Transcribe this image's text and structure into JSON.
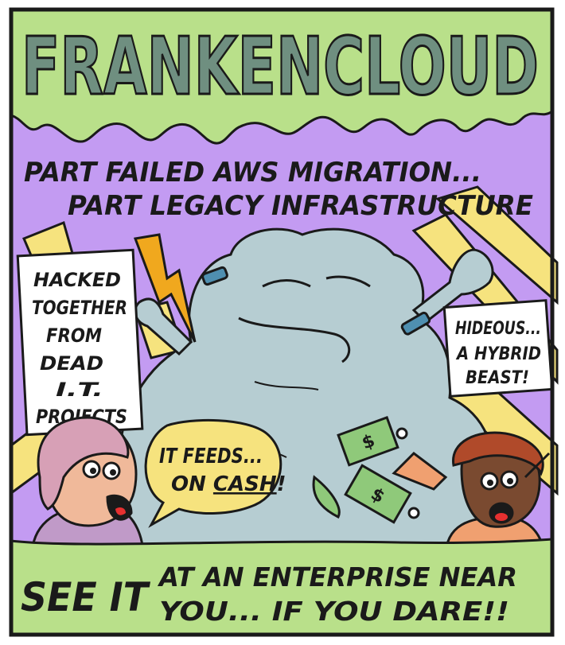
{
  "title": "FRANKENCLOUD",
  "caption": {
    "line1": "PART FAILED AWS MIGRATION...",
    "line2": "PART LEGACY INFRASTRUCTURE"
  },
  "left_sign": [
    "HACKED",
    "TOGETHER",
    "FROM",
    "DEAD",
    "I.T.",
    "PROJECTS"
  ],
  "right_sign": [
    "HIDEOUS...",
    "A HYBRID",
    "BEAST!"
  ],
  "speech": {
    "line1": "IT FEEDS...",
    "line2_prefix": "ON ",
    "line2_emph": "CASH",
    "line2_suffix": "!"
  },
  "footer": {
    "left": "SEE IT",
    "right_line1": "AT AN ENTERPRISE NEAR",
    "right_line2": "YOU... IF YOU DARE!!"
  },
  "colors": {
    "title_fill": "#6f8f80",
    "slime": "#b9e08a",
    "sky": "#c39bf2",
    "rays": "#f6e37e",
    "cloud": "#b6cdd2",
    "footer": "#b9e08a",
    "money": "#8fc97a",
    "lightning": "#f0a81e"
  }
}
